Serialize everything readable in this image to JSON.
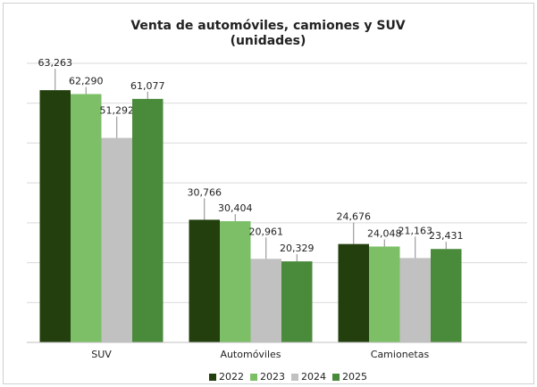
{
  "chart_data": {
    "type": "bar",
    "title": "Venta de automóviles, camiones y SUV",
    "subtitle": "(unidades)",
    "categories": [
      "SUV",
      "Automóviles",
      "Camionetas"
    ],
    "series": [
      {
        "name": "2022",
        "color": "#223f0d",
        "values": [
          63263,
          30766,
          24676
        ],
        "value_labels": [
          "63,263",
          "30,766",
          "24,676"
        ]
      },
      {
        "name": "2023",
        "color": "#7cbf67",
        "values": [
          62290,
          30404,
          24048
        ],
        "value_labels": [
          "62,290",
          "30,404",
          "24,048"
        ]
      },
      {
        "name": "2024",
        "color": "#c1c1c1",
        "values": [
          51292,
          20961,
          21163
        ],
        "value_labels": [
          "51,292",
          "20,961",
          "21,163"
        ]
      },
      {
        "name": "2025",
        "color": "#4a8a3b",
        "values": [
          61077,
          20329,
          23431
        ],
        "value_labels": [
          "61,077",
          "20,329",
          "23,431"
        ]
      }
    ],
    "ylim": [
      0,
      70000
    ],
    "yticks": [
      0,
      10000,
      20000,
      30000,
      40000,
      50000,
      60000,
      70000
    ],
    "grid": true,
    "legend": "bottom"
  }
}
